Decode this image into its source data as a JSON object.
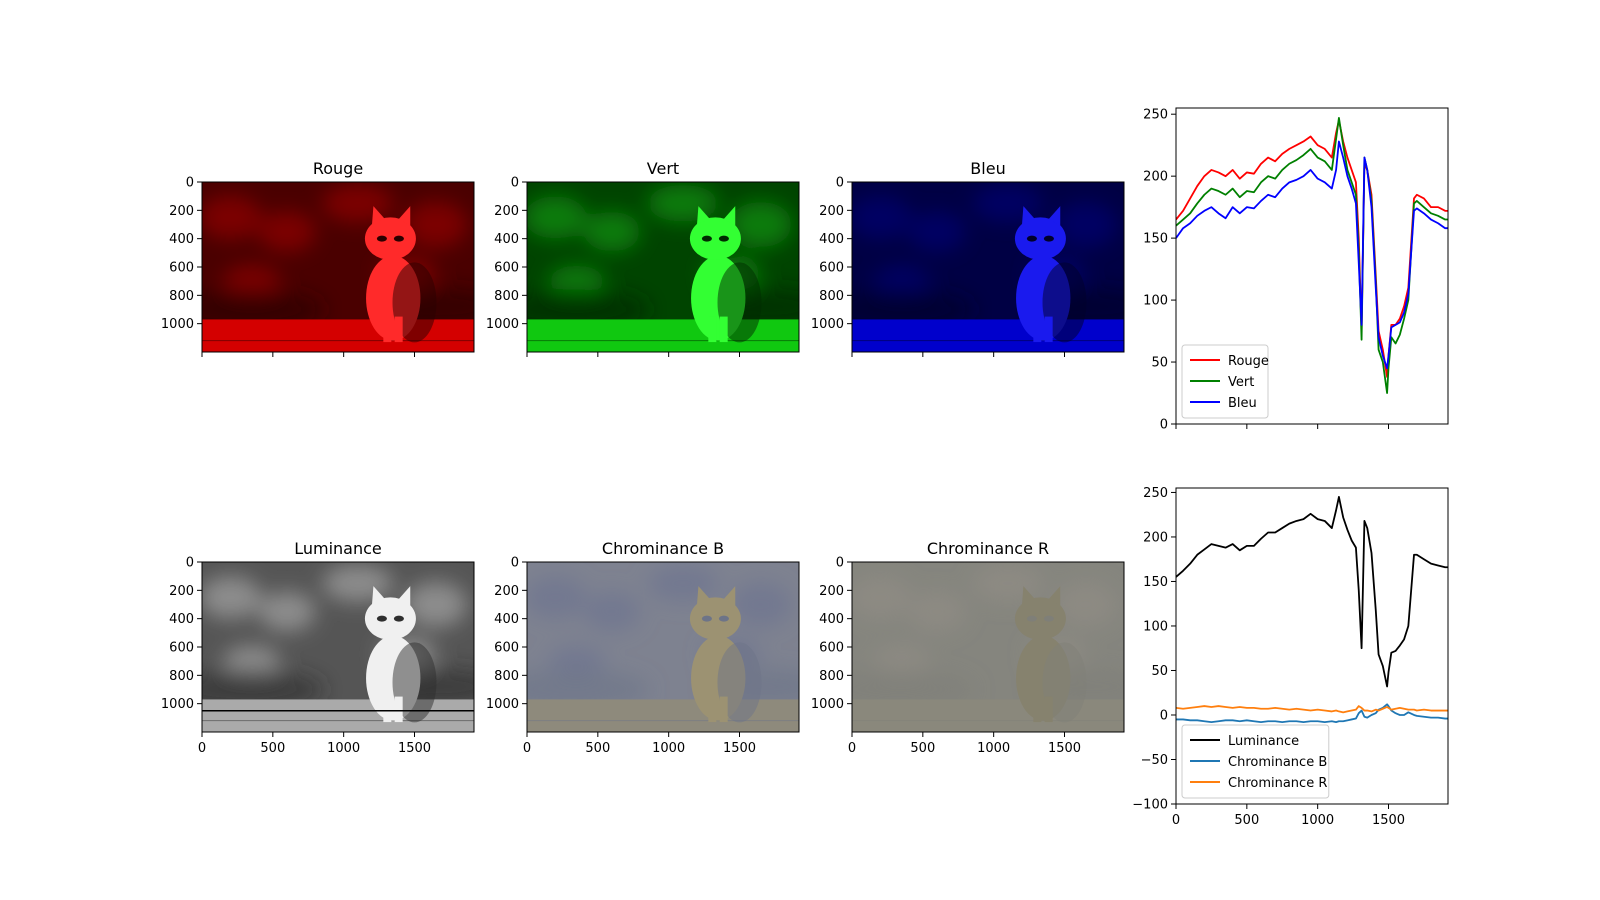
{
  "chart_data": [
    {
      "type": "image",
      "title": "Rouge",
      "tint": "#ff0000",
      "xlim": [
        0,
        1920
      ],
      "ylim": [
        1200,
        0
      ],
      "yticks": [
        0,
        200,
        400,
        600,
        800,
        1000
      ],
      "xticks": [
        0,
        500,
        1000,
        1500
      ],
      "show_xtick_labels": false
    },
    {
      "type": "image",
      "title": "Vert",
      "tint": "#00ff00",
      "xlim": [
        0,
        1920
      ],
      "ylim": [
        1200,
        0
      ],
      "yticks": [
        0,
        200,
        400,
        600,
        800,
        1000
      ],
      "xticks": [
        0,
        500,
        1000,
        1500
      ],
      "show_xtick_labels": false
    },
    {
      "type": "image",
      "title": "Bleu",
      "tint": "#0000ff",
      "xlim": [
        0,
        1920
      ],
      "ylim": [
        1200,
        0
      ],
      "yticks": [
        0,
        200,
        400,
        600,
        800,
        1000
      ],
      "xticks": [
        0,
        500,
        1000,
        1500
      ],
      "show_xtick_labels": false
    },
    {
      "type": "line",
      "xlim": [
        0,
        1920
      ],
      "ylim": [
        0,
        255
      ],
      "yticks": [
        0,
        50,
        100,
        150,
        200,
        250
      ],
      "xticks": [
        0,
        500,
        1000,
        1500
      ],
      "show_xtick_labels": false,
      "legend": "lower-left",
      "x": [
        0,
        50,
        100,
        150,
        200,
        250,
        300,
        350,
        400,
        450,
        500,
        550,
        600,
        650,
        700,
        750,
        800,
        850,
        900,
        950,
        1000,
        1050,
        1100,
        1130,
        1150,
        1180,
        1210,
        1240,
        1270,
        1290,
        1310,
        1330,
        1350,
        1380,
        1410,
        1430,
        1460,
        1490,
        1500,
        1520,
        1550,
        1580,
        1610,
        1640,
        1680,
        1700,
        1750,
        1800,
        1850,
        1900,
        1920
      ],
      "series": [
        {
          "name": "Rouge",
          "color": "#ff0000",
          "values": [
            165,
            172,
            182,
            192,
            200,
            205,
            203,
            200,
            205,
            198,
            203,
            202,
            210,
            215,
            212,
            218,
            222,
            225,
            228,
            232,
            225,
            222,
            215,
            235,
            245,
            228,
            215,
            205,
            195,
            150,
            75,
            210,
            205,
            185,
            120,
            75,
            60,
            38,
            55,
            80,
            80,
            85,
            95,
            110,
            182,
            185,
            182,
            175,
            175,
            172,
            172
          ]
        },
        {
          "name": "Vert",
          "color": "#008000",
          "values": [
            160,
            165,
            170,
            178,
            185,
            190,
            188,
            185,
            190,
            183,
            188,
            187,
            195,
            200,
            198,
            205,
            210,
            213,
            217,
            222,
            215,
            212,
            205,
            230,
            247,
            225,
            205,
            195,
            185,
            140,
            68,
            215,
            205,
            180,
            115,
            60,
            50,
            25,
            45,
            70,
            65,
            72,
            85,
            100,
            178,
            180,
            175,
            170,
            168,
            165,
            165
          ]
        },
        {
          "name": "Bleu",
          "color": "#0000ff",
          "values": [
            150,
            158,
            162,
            168,
            172,
            175,
            170,
            166,
            175,
            170,
            175,
            174,
            180,
            185,
            183,
            190,
            195,
            197,
            200,
            205,
            198,
            195,
            190,
            205,
            228,
            215,
            200,
            190,
            178,
            130,
            80,
            215,
            205,
            175,
            110,
            70,
            55,
            45,
            55,
            78,
            80,
            82,
            90,
            105,
            172,
            174,
            170,
            165,
            162,
            158,
            158
          ]
        }
      ]
    },
    {
      "type": "image",
      "title": "Luminance",
      "tint": "#808080",
      "xlim": [
        0,
        1920
      ],
      "ylim": [
        1200,
        0
      ],
      "yticks": [
        0,
        200,
        400,
        600,
        800,
        1000
      ],
      "xticks": [
        0,
        500,
        1000,
        1500
      ],
      "show_xtick_labels": true,
      "hline_y": 1050
    },
    {
      "type": "image",
      "title": "Chrominance B",
      "tint": "#8d8f8f",
      "xlim": [
        0,
        1920
      ],
      "ylim": [
        1200,
        0
      ],
      "yticks": [
        0,
        200,
        400,
        600,
        800,
        1000
      ],
      "xticks": [
        0,
        500,
        1000,
        1500
      ],
      "show_xtick_labels": true
    },
    {
      "type": "image",
      "title": "Chrominance R",
      "tint": "#8a8a84",
      "xlim": [
        0,
        1920
      ],
      "ylim": [
        1200,
        0
      ],
      "yticks": [
        0,
        200,
        400,
        600,
        800,
        1000
      ],
      "xticks": [
        0,
        500,
        1000,
        1500
      ],
      "show_xtick_labels": true
    },
    {
      "type": "line",
      "xlim": [
        0,
        1920
      ],
      "ylim": [
        -100,
        255
      ],
      "yticks": [
        -100,
        -50,
        0,
        50,
        100,
        150,
        200,
        250
      ],
      "xticks": [
        0,
        500,
        1000,
        1500
      ],
      "show_xtick_labels": true,
      "legend": "lower-left",
      "x": [
        0,
        50,
        100,
        150,
        200,
        250,
        300,
        350,
        400,
        450,
        500,
        550,
        600,
        650,
        700,
        750,
        800,
        850,
        900,
        950,
        1000,
        1050,
        1100,
        1130,
        1150,
        1180,
        1210,
        1240,
        1270,
        1290,
        1310,
        1330,
        1350,
        1380,
        1410,
        1430,
        1460,
        1490,
        1500,
        1520,
        1550,
        1580,
        1610,
        1640,
        1680,
        1700,
        1750,
        1800,
        1850,
        1900,
        1920
      ],
      "series": [
        {
          "name": "Luminance",
          "color": "#000000",
          "values": [
            155,
            162,
            170,
            180,
            186,
            192,
            190,
            188,
            192,
            185,
            190,
            190,
            198,
            205,
            205,
            210,
            215,
            218,
            220,
            226,
            220,
            218,
            210,
            230,
            245,
            222,
            208,
            196,
            188,
            140,
            75,
            218,
            210,
            182,
            118,
            68,
            55,
            32,
            48,
            70,
            72,
            78,
            85,
            100,
            180,
            180,
            175,
            170,
            168,
            166,
            166
          ]
        },
        {
          "name": "Chrominance B",
          "color": "#1f77b4",
          "values": [
            -5,
            -5,
            -6,
            -6,
            -7,
            -8,
            -7,
            -6,
            -6,
            -7,
            -6,
            -7,
            -8,
            -7,
            -7,
            -8,
            -7,
            -7,
            -8,
            -7,
            -7,
            -8,
            -7,
            -8,
            -7,
            -7,
            -6,
            -5,
            -4,
            2,
            5,
            -2,
            -3,
            0,
            2,
            6,
            8,
            12,
            10,
            5,
            2,
            0,
            0,
            3,
            0,
            -1,
            -2,
            -3,
            -3,
            -4,
            -4
          ]
        },
        {
          "name": "Chrominance R",
          "color": "#ff7f0e",
          "values": [
            8,
            7,
            8,
            9,
            10,
            9,
            10,
            9,
            8,
            9,
            8,
            8,
            7,
            7,
            8,
            7,
            6,
            7,
            6,
            5,
            6,
            5,
            4,
            5,
            4,
            3,
            4,
            5,
            6,
            10,
            8,
            5,
            5,
            4,
            6,
            5,
            7,
            9,
            8,
            6,
            7,
            8,
            7,
            6,
            6,
            5,
            6,
            5,
            5,
            5,
            5
          ]
        }
      ]
    }
  ]
}
